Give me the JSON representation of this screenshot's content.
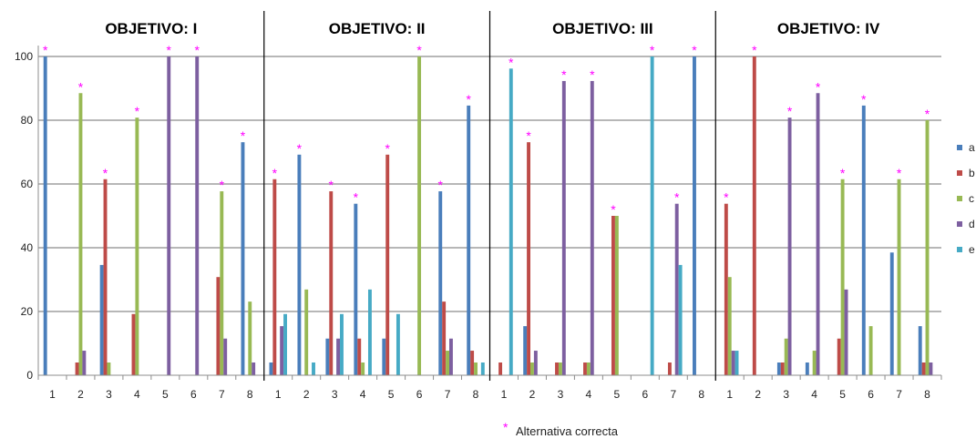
{
  "chart_data": {
    "type": "bar",
    "ylim": [
      0,
      100
    ],
    "yticks": [
      0,
      20,
      40,
      60,
      80,
      100
    ],
    "grid": true,
    "legend_position": "right",
    "series_names": [
      "a",
      "b",
      "c",
      "d",
      "e"
    ],
    "series_colors": [
      "#4a7ebb",
      "#be4b48",
      "#98b954",
      "#7d5fa0",
      "#46aac5"
    ],
    "star_color": "#ff00ff",
    "categories": [
      "1",
      "2",
      "3",
      "4",
      "5",
      "6",
      "7",
      "8"
    ],
    "footnote": {
      "symbol": "*",
      "text": "Alternativa correcta"
    },
    "panels": [
      {
        "title": "OBJETIVO: I",
        "items": [
          {
            "label": "1",
            "values": [
              100,
              0,
              0,
              0,
              0
            ],
            "correct": 0
          },
          {
            "label": "2",
            "values": [
              0,
              4,
              88.5,
              7.7,
              0
            ],
            "correct": 2
          },
          {
            "label": "3",
            "values": [
              34.6,
              61.5,
              4,
              0,
              0
            ],
            "correct": 1
          },
          {
            "label": "4",
            "values": [
              0,
              19.2,
              80.8,
              0,
              0
            ],
            "correct": 2
          },
          {
            "label": "5",
            "values": [
              0,
              0,
              0,
              100,
              0
            ],
            "correct": 3
          },
          {
            "label": "6",
            "values": [
              0,
              0,
              0,
              100,
              0
            ],
            "correct": 3
          },
          {
            "label": "7",
            "values": [
              0,
              30.8,
              57.7,
              11.5,
              0
            ],
            "correct": 2
          },
          {
            "label": "8",
            "values": [
              73.1,
              0,
              23.1,
              4,
              0
            ],
            "correct": 0
          }
        ]
      },
      {
        "title": "OBJETIVO: II",
        "items": [
          {
            "label": "1",
            "values": [
              4,
              61.5,
              0,
              15.4,
              19.2
            ],
            "correct": 1
          },
          {
            "label": "2",
            "values": [
              69.2,
              0,
              26.9,
              0,
              4
            ],
            "correct": 0
          },
          {
            "label": "3",
            "values": [
              11.5,
              57.7,
              0,
              11.5,
              19.2
            ],
            "correct": 1
          },
          {
            "label": "4",
            "values": [
              53.8,
              11.5,
              4,
              0,
              26.9
            ],
            "correct": 0
          },
          {
            "label": "5",
            "values": [
              11.5,
              69.2,
              0,
              0,
              19.2
            ],
            "correct": 1
          },
          {
            "label": "6",
            "values": [
              0,
              0,
              100,
              0,
              0
            ],
            "correct": 2
          },
          {
            "label": "7",
            "values": [
              57.7,
              23.1,
              7.7,
              11.5,
              0
            ],
            "correct": 0
          },
          {
            "label": "8",
            "values": [
              84.6,
              7.7,
              4,
              0,
              4
            ],
            "correct": 0
          }
        ]
      },
      {
        "title": "OBJETIVO: III",
        "items": [
          {
            "label": "1",
            "values": [
              0,
              4,
              0,
              0,
              96.2
            ],
            "correct": 4
          },
          {
            "label": "2",
            "values": [
              15.4,
              73.1,
              4,
              7.7,
              0
            ],
            "correct": 1
          },
          {
            "label": "3",
            "values": [
              0,
              4,
              4,
              92.3,
              0
            ],
            "correct": 3
          },
          {
            "label": "4",
            "values": [
              0,
              4,
              4,
              92.3,
              0
            ],
            "correct": 3
          },
          {
            "label": "5",
            "values": [
              0,
              50,
              50,
              0,
              0
            ],
            "correct": 1
          },
          {
            "label": "6",
            "values": [
              0,
              0,
              0,
              0,
              100
            ],
            "correct": 4
          },
          {
            "label": "7",
            "values": [
              0,
              4,
              0,
              53.8,
              34.6
            ],
            "correct": 3
          },
          {
            "label": "8",
            "values": [
              100,
              0,
              0,
              0,
              0
            ],
            "correct": 0
          }
        ]
      },
      {
        "title": "OBJETIVO: IV",
        "items": [
          {
            "label": "1",
            "values": [
              0,
              53.8,
              30.8,
              7.7,
              7.7
            ],
            "correct": 1
          },
          {
            "label": "2",
            "values": [
              0,
              100,
              0,
              0,
              0
            ],
            "correct": 1
          },
          {
            "label": "3",
            "values": [
              4,
              4,
              11.5,
              80.8,
              0
            ],
            "correct": 3
          },
          {
            "label": "4",
            "values": [
              4,
              0,
              7.7,
              88.5,
              0
            ],
            "correct": 3
          },
          {
            "label": "5",
            "values": [
              0,
              11.5,
              61.5,
              26.9,
              0
            ],
            "correct": 2
          },
          {
            "label": "6",
            "values": [
              84.6,
              0,
              15.4,
              0,
              0
            ],
            "correct": 0
          },
          {
            "label": "7",
            "values": [
              38.5,
              0,
              61.5,
              0,
              0
            ],
            "correct": 2
          },
          {
            "label": "8",
            "values": [
              15.4,
              4,
              80,
              4,
              0
            ],
            "correct": 2
          }
        ]
      }
    ]
  }
}
